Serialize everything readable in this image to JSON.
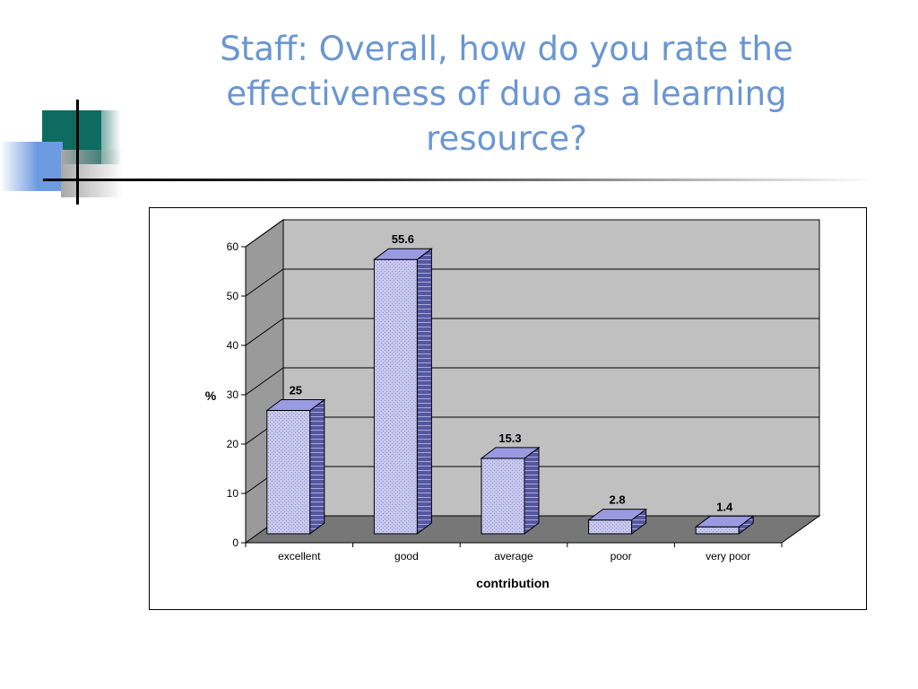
{
  "slide": {
    "title": "Staff: Overall, how do you rate the effectiveness of duo as a learning resource?"
  },
  "theme": {
    "title_color": "#6a96d2",
    "teal": "#0e6b60",
    "blue": "#6d9ae0",
    "gray": "#a8a8a8",
    "bar_front": "#c8c8ee",
    "bar_side": "#5656a0",
    "bar_top": "#9a9ae0",
    "plot_back": "#c0c0c0",
    "plot_wall": "#9a9a9a",
    "plot_floor": "#777777"
  },
  "chart_data": {
    "type": "bar",
    "categories": [
      "excellent",
      "good",
      "average",
      "poor",
      "very poor"
    ],
    "values": [
      25,
      55.6,
      15.3,
      2.8,
      1.4
    ],
    "data_labels": [
      "25",
      "55.6",
      "15.3",
      "2.8",
      "1.4"
    ],
    "title": "",
    "xlabel": "contribution",
    "ylabel": "%",
    "ylim": [
      0,
      60
    ],
    "yticks": [
      "0",
      "10",
      "20",
      "30",
      "40",
      "50",
      "60"
    ],
    "grid": true,
    "legend": "none",
    "style": "3d-column"
  }
}
